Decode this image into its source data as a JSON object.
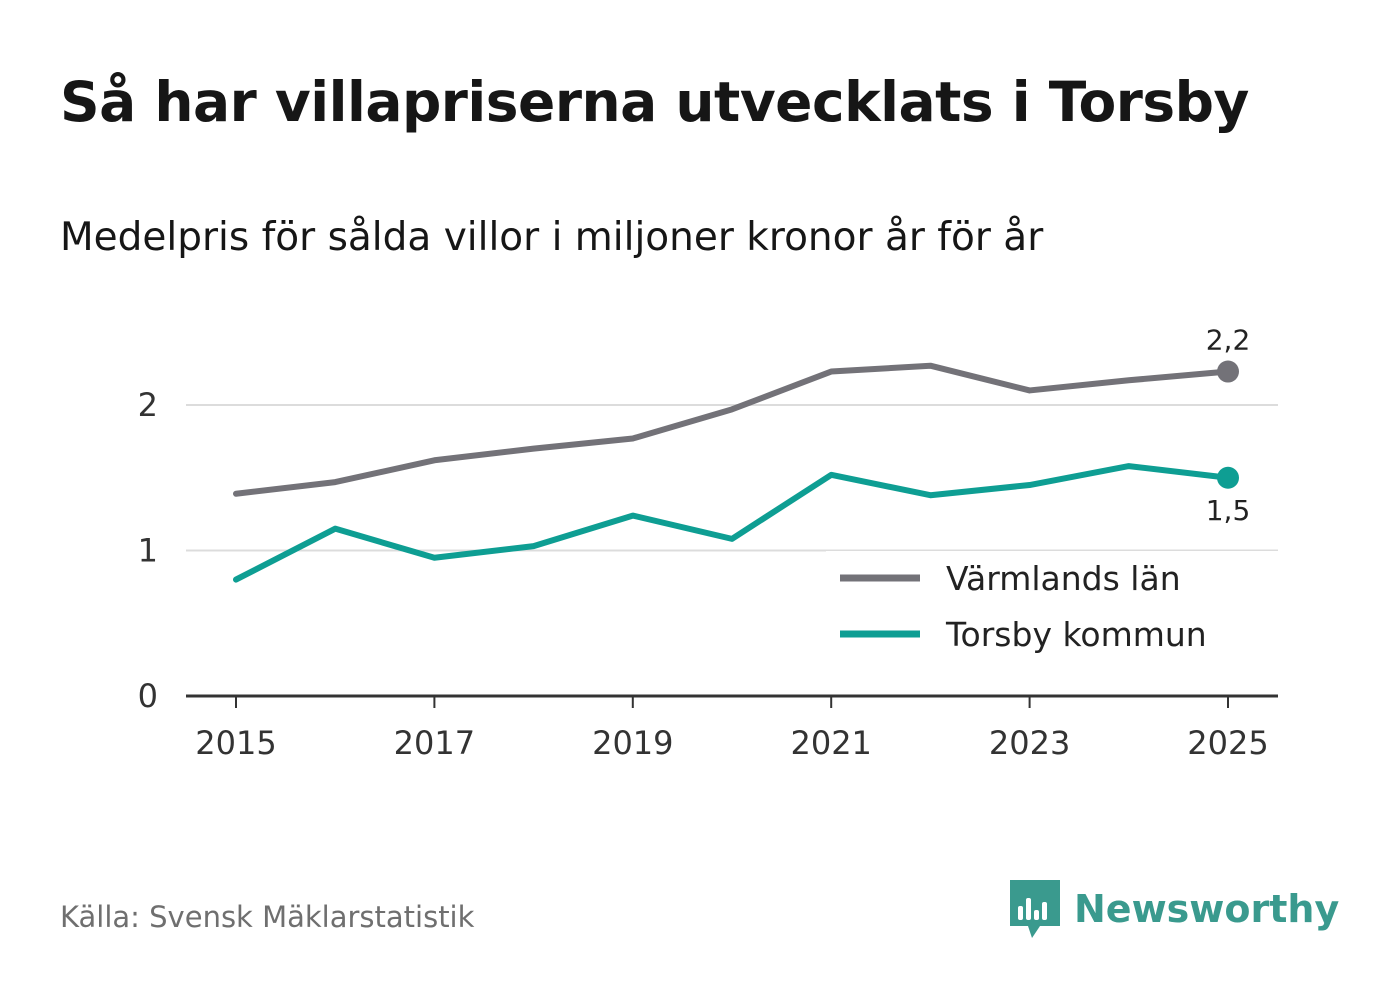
{
  "title": "Så har villapriserna utvecklats i Torsby",
  "subtitle": "Medelpris för sålda villor i miljoner kronor år för år",
  "source": "Källa: Svensk Mäklarstatistik",
  "brand": {
    "name": "Newsworthy",
    "icon": "newsworthy-logo-icon",
    "color": "#3a9a8e"
  },
  "chart_data": {
    "type": "line",
    "title": "Så har villapriserna utvecklats i Torsby",
    "subtitle": "Medelpris för sålda villor i miljoner kronor år för år",
    "xlabel": "",
    "ylabel": "",
    "x": [
      2015,
      2016,
      2017,
      2018,
      2019,
      2020,
      2021,
      2022,
      2023,
      2024,
      2025
    ],
    "xticks": [
      "2015",
      "2017",
      "2019",
      "2021",
      "2023",
      "2025"
    ],
    "yticks": [
      "0",
      "1",
      "2"
    ],
    "ylim": [
      0,
      2.5
    ],
    "grid": true,
    "legend_position": "bottom-right",
    "series": [
      {
        "name": "Värmlands län",
        "color": "#737278",
        "values": [
          1.39,
          1.47,
          1.62,
          1.7,
          1.77,
          1.97,
          2.23,
          2.27,
          2.1,
          2.17,
          2.23
        ],
        "end_label": "2,2",
        "end_label_position": "above"
      },
      {
        "name": "Torsby kommun",
        "color": "#0e9e93",
        "values": [
          0.8,
          1.15,
          0.95,
          1.03,
          1.24,
          1.08,
          1.52,
          1.38,
          1.45,
          1.58,
          1.5
        ],
        "end_label": "1,5",
        "end_label_position": "below"
      }
    ]
  }
}
